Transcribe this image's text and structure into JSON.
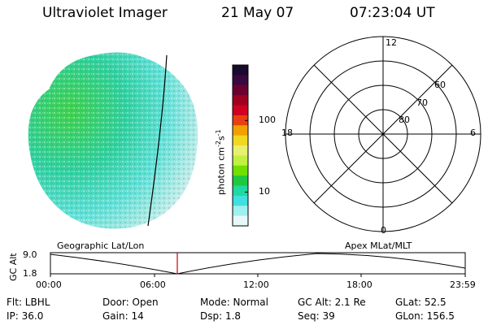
{
  "header": {
    "title": "Ultraviolet Imager",
    "date": "21 May 07",
    "time": "07:23:04 UT"
  },
  "colorbar": {
    "label": "photon cm",
    "label_sup1": "-2",
    "label_mid": "s",
    "label_sup2": "-1",
    "ticks": [
      "100",
      "10"
    ],
    "colors": [
      "#1a0a2e",
      "#3a0840",
      "#6b0030",
      "#a00020",
      "#d00020",
      "#e84010",
      "#f0a000",
      "#f0d820",
      "#e8f070",
      "#c0f040",
      "#70e000",
      "#20c840",
      "#20d8a0",
      "#40e0e0",
      "#a0f0f0",
      "#e8f8f8"
    ]
  },
  "polar": {
    "top": "12",
    "left": "18",
    "right": "6",
    "bottom": "0",
    "rings": [
      "60",
      "70",
      "80"
    ]
  },
  "track": {
    "left_label": "Geographic Lat/Lon",
    "right_label": "Apex MLat/MLT",
    "yaxis_title": "GC Alt",
    "y_top": "9.0",
    "y_bottom": "1.8",
    "x_ticks": [
      "00:00",
      "06:00",
      "12:00",
      "18:00",
      "23:59"
    ],
    "marker_color": "#cc0000"
  },
  "info": {
    "flt": "Flt: LBHL",
    "door": "Door: Open",
    "mode": "Mode: Normal",
    "gcalt": "GC Alt: 2.1 Re",
    "glat": "GLat:  52.5",
    "ip": "IP: 36.0",
    "gain": "Gain: 14",
    "dsp": "Dsp:    1.8",
    "seq": "Seq: 39",
    "glon": "GLon: 156.5"
  }
}
